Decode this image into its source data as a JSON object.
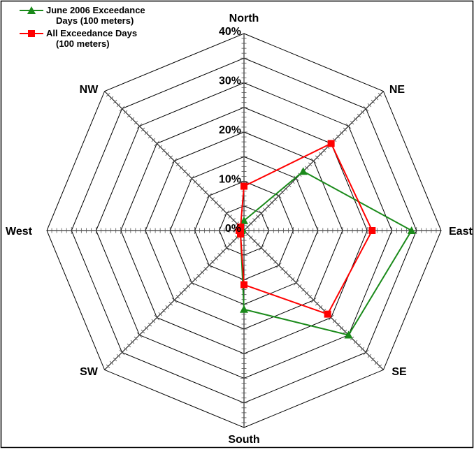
{
  "chart_data": {
    "type": "radar",
    "directions": [
      "North",
      "NE",
      "East",
      "SE",
      "South",
      "SW",
      "West",
      "NW"
    ],
    "radial_ticks": [
      "0%",
      "10%",
      "20%",
      "30%",
      "40%"
    ],
    "rlim": [
      0,
      40
    ],
    "grid": true,
    "legend_position": "top-left",
    "series": [
      {
        "name": "June 2006 Exceedance Days (100 meters)",
        "color": "#1a8a1a",
        "marker": "triangle",
        "values": [
          2,
          17,
          34,
          30,
          16,
          1,
          0.5,
          0.5
        ]
      },
      {
        "name": "All Exceedance Days (100 meters)",
        "color": "#ff0000",
        "marker": "square",
        "values": [
          9,
          25,
          26,
          24,
          11,
          1,
          1,
          1
        ]
      }
    ],
    "legend": [
      {
        "line1": "June 2006 Exceedance",
        "line2": "Days (100 meters)"
      },
      {
        "line1": "All Exceedance Days",
        "line2": "(100 meters)"
      }
    ]
  }
}
